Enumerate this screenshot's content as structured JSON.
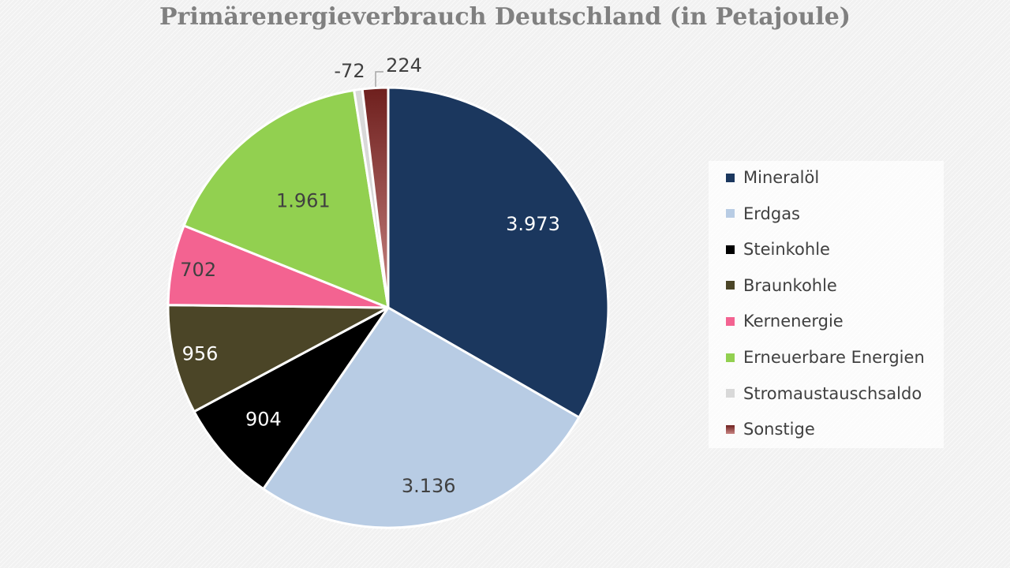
{
  "chart_data": {
    "type": "pie",
    "title": "Primärenergieverbrauch Deutschland (in Petajoule)",
    "slices": [
      {
        "name": "Mineralöl",
        "value": 3973,
        "label": "3.973",
        "color": "#1b375e",
        "label_color": "#ffffff"
      },
      {
        "name": "Erdgas",
        "value": 3136,
        "label": "3.136",
        "color": "#b8cce4",
        "label_color": "#404040"
      },
      {
        "name": "Steinkohle",
        "value": 904,
        "label": "904",
        "color": "#000000",
        "label_color": "#ffffff"
      },
      {
        "name": "Braunkohle",
        "value": 956,
        "label": "956",
        "color": "#4b4527",
        "label_color": "#ffffff"
      },
      {
        "name": "Kernenergie",
        "value": 702,
        "label": "702",
        "color": "#f36391",
        "label_color": "#404040"
      },
      {
        "name": "Erneuerbare Energien",
        "value": 1961,
        "label": "1.961",
        "color": "#92d050",
        "label_color": "#404040"
      },
      {
        "name": "Stromaustauschsaldo",
        "value": -72,
        "label": "-72",
        "color": "#d9d9d9",
        "label_color": "#404040"
      },
      {
        "name": "Sonstige",
        "value": 224,
        "label": "224",
        "color": "#8c2d2b",
        "label_color": "#404040"
      }
    ],
    "legend_position": "right"
  }
}
